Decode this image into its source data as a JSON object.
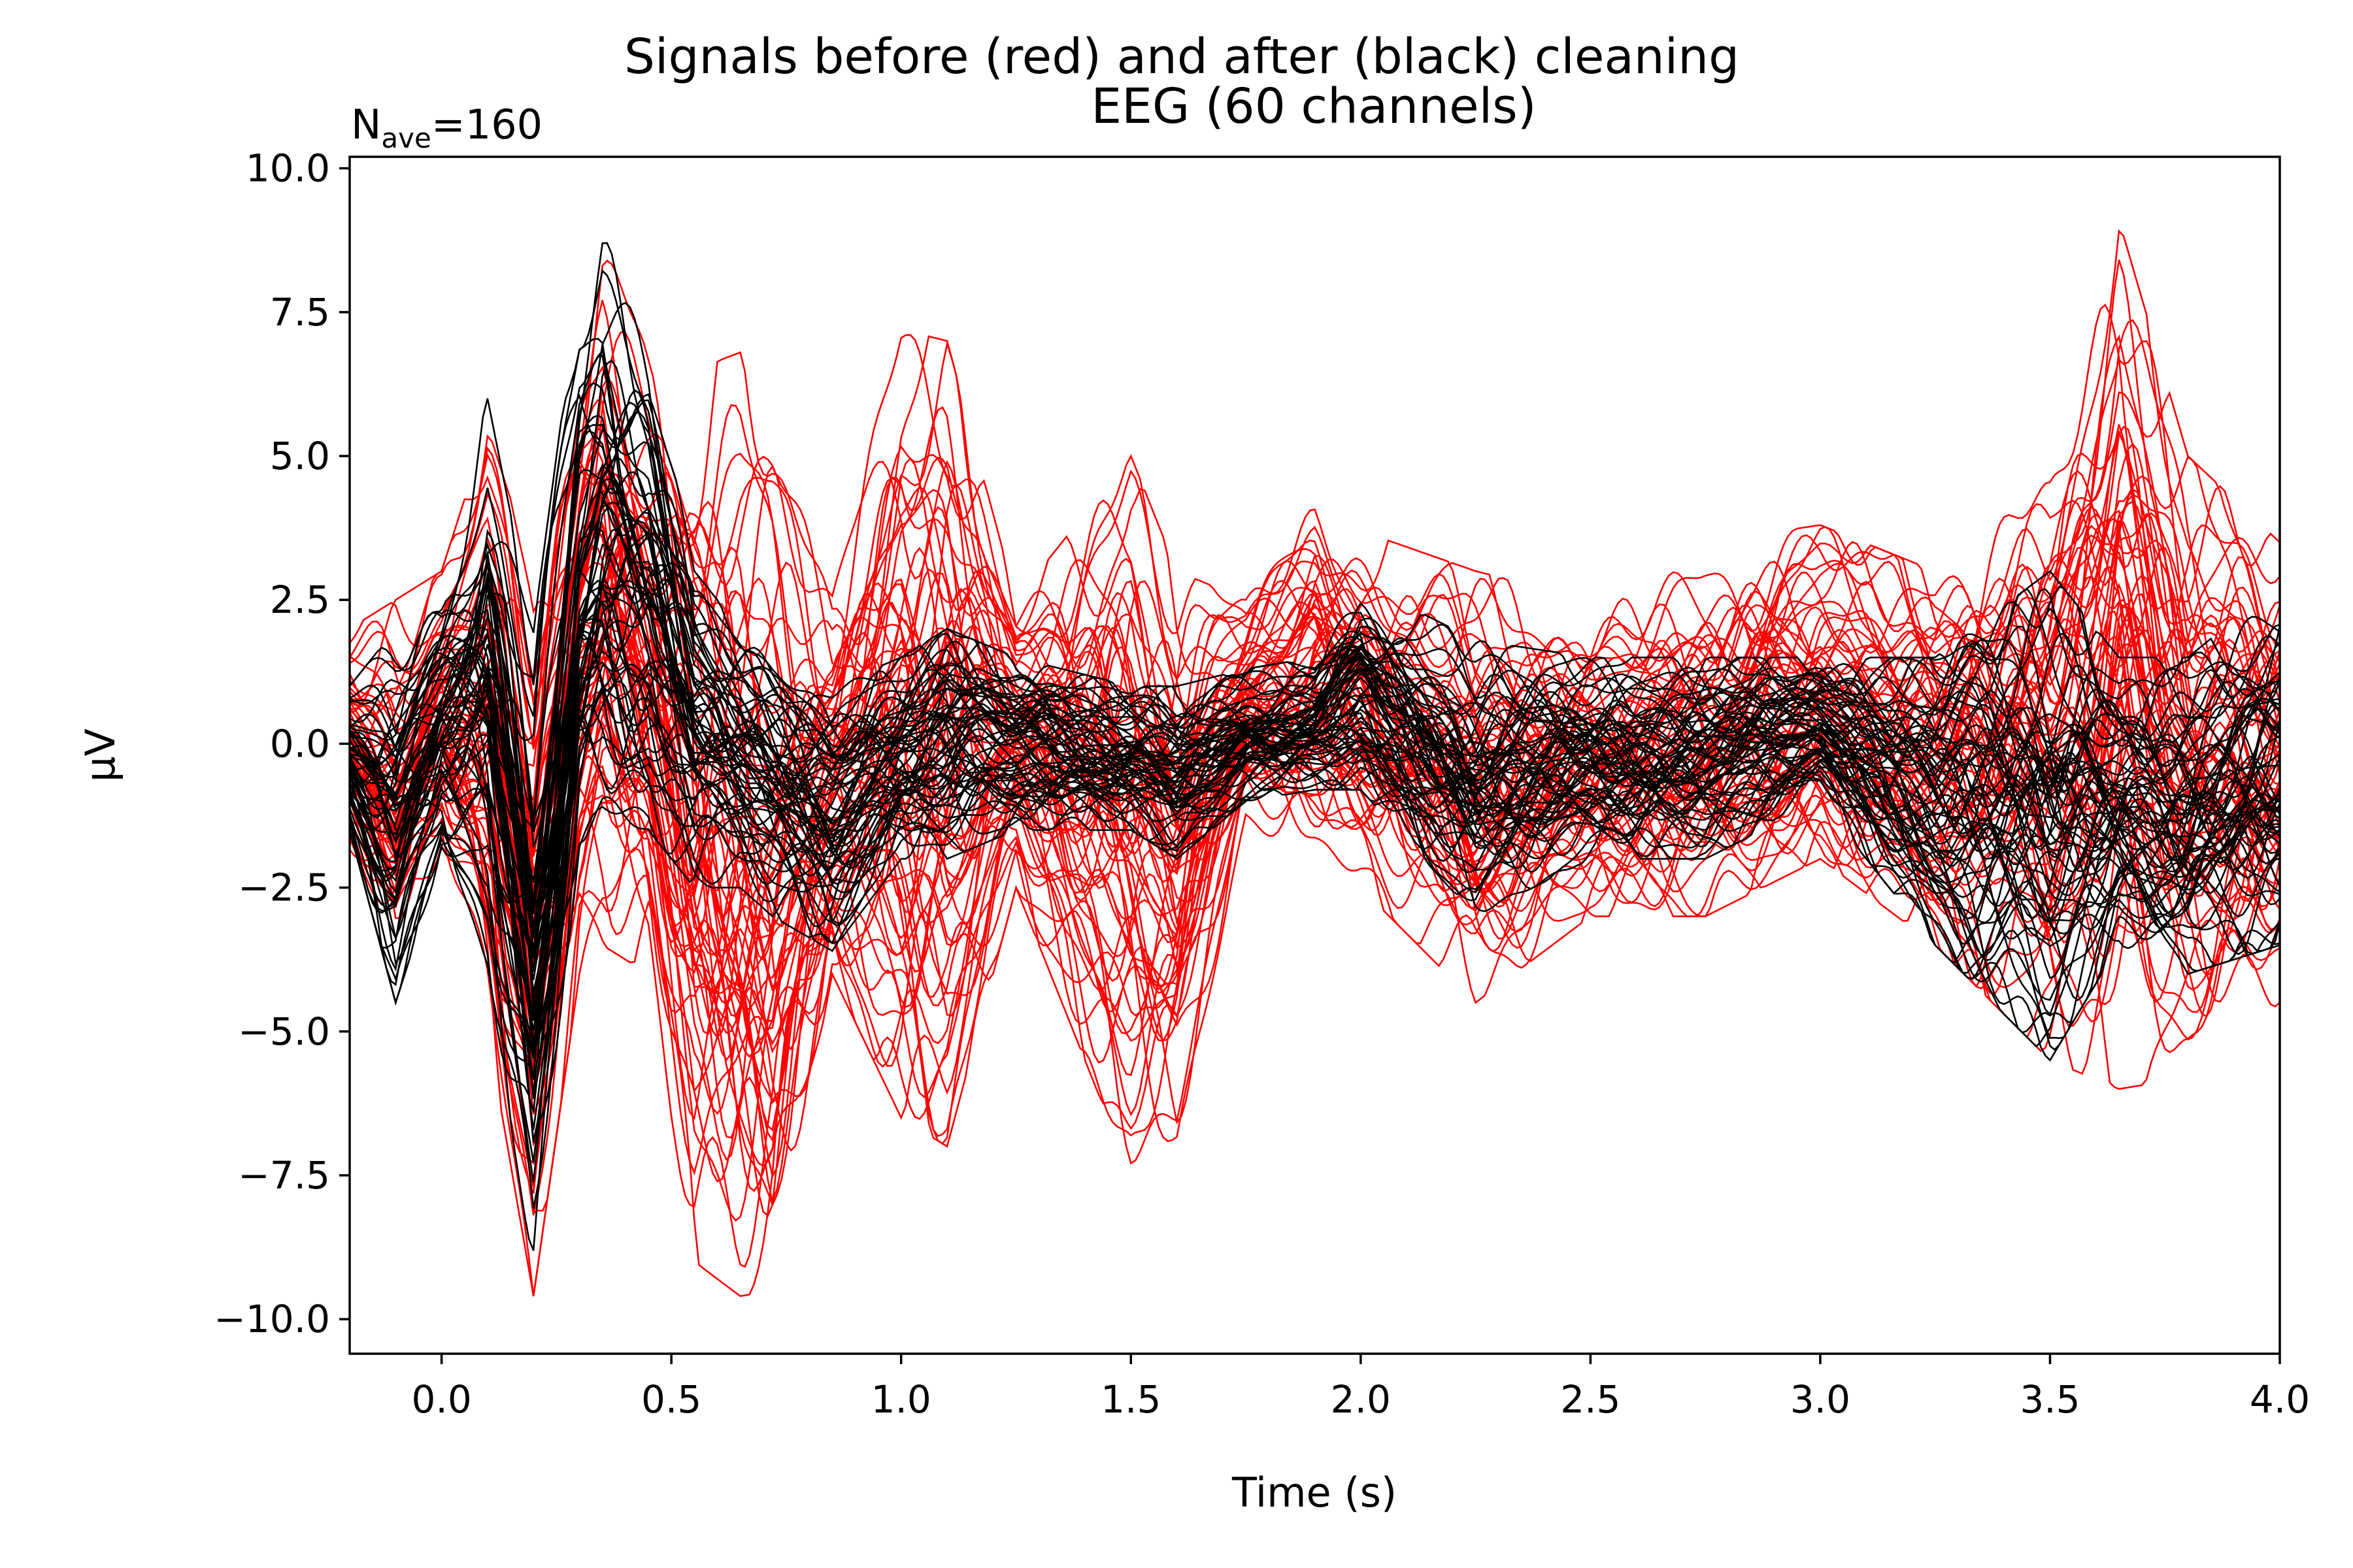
{
  "figure": {
    "suptitle": "Signals before (red) and after (black) cleaning",
    "axes_title": "EEG (60 channels)",
    "nave_base": "N",
    "nave_sub": "ave",
    "nave_value": "=160"
  },
  "chart_data": {
    "type": "line",
    "title": "Signals before (red) and after (black) cleaning",
    "subtitle": "EEG (60 channels)",
    "annotation": "Nave=160",
    "xlabel": "Time (s)",
    "ylabel": "µV",
    "xlim": [
      -0.2,
      4.0
    ],
    "ylim": [
      -10.6,
      10.2
    ],
    "x_ticks": [
      0.0,
      0.5,
      1.0,
      1.5,
      2.0,
      2.5,
      3.0,
      3.5,
      4.0
    ],
    "x_tick_labels": [
      "0.0",
      "0.5",
      "1.0",
      "1.5",
      "2.0",
      "2.5",
      "3.0",
      "3.5",
      "4.0"
    ],
    "y_ticks": [
      10.0,
      7.5,
      5.0,
      2.5,
      0.0,
      -2.5,
      -5.0,
      -7.5,
      -10.0
    ],
    "y_tick_labels": [
      "10.0",
      "7.5",
      "5.0",
      "2.5",
      "0.0",
      "−2.5",
      "−5.0",
      "−7.5",
      "−10.0"
    ],
    "grid": false,
    "legend": "none",
    "series": [
      {
        "color": "#ff0000",
        "traces": 60,
        "envelope_x": [
          -0.2,
          -0.1,
          0.0,
          0.1,
          0.2,
          0.3,
          0.35,
          0.45,
          0.55,
          0.65,
          0.72,
          0.85,
          1.0,
          1.1,
          1.25,
          1.5,
          1.6,
          1.75,
          1.9,
          2.0,
          2.25,
          2.5,
          2.75,
          3.0,
          3.25,
          3.5,
          3.65,
          3.8,
          4.0
        ],
        "envelope_max": [
          2.0,
          2.5,
          3.0,
          5.5,
          3.0,
          7.5,
          9.0,
          7.0,
          6.5,
          6.8,
          6.0,
          3.0,
          7.2,
          7.0,
          2.5,
          5.0,
          3.0,
          2.5,
          4.3,
          3.7,
          3.0,
          2.5,
          3.5,
          3.8,
          3.0,
          5.0,
          9.1,
          5.0,
          3.5
        ],
        "envelope_min": [
          -2.0,
          -4.5,
          -2.0,
          -5.0,
          -9.6,
          -4.0,
          -3.5,
          -4.0,
          -9.0,
          -9.6,
          -9.5,
          -4.0,
          -6.5,
          -7.0,
          -2.5,
          -7.5,
          -7.5,
          -1.5,
          -2.0,
          -2.5,
          -4.5,
          -3.0,
          -3.0,
          -2.0,
          -3.5,
          -5.5,
          -6.0,
          -5.8,
          -4.5
        ]
      },
      {
        "color": "#000000",
        "traces": 60,
        "envelope_x": [
          -0.2,
          -0.1,
          0.0,
          0.1,
          0.2,
          0.3,
          0.35,
          0.45,
          0.55,
          0.65,
          0.72,
          0.85,
          1.0,
          1.1,
          1.25,
          1.5,
          1.6,
          1.75,
          1.9,
          2.0,
          2.25,
          2.5,
          2.75,
          3.0,
          3.25,
          3.5,
          3.65,
          3.8,
          4.0
        ],
        "envelope_max": [
          1.0,
          2.0,
          2.8,
          6.0,
          2.0,
          8.0,
          9.1,
          7.0,
          3.0,
          2.0,
          1.5,
          1.0,
          1.5,
          2.0,
          1.5,
          1.0,
          1.0,
          1.3,
          1.5,
          2.8,
          1.8,
          1.5,
          1.5,
          1.5,
          1.5,
          3.0,
          1.5,
          1.5,
          2.8
        ],
        "envelope_min": [
          -1.5,
          -4.5,
          -2.0,
          -4.0,
          -9.2,
          -2.5,
          -2.0,
          -1.5,
          -2.5,
          -2.5,
          -3.0,
          -3.6,
          -2.0,
          -2.0,
          -1.5,
          -1.5,
          -2.0,
          -1.0,
          -0.8,
          -0.8,
          -3.0,
          -2.0,
          -2.0,
          -1.0,
          -3.5,
          -5.5,
          -3.5,
          -4.0,
          -3.5
        ]
      }
    ]
  }
}
